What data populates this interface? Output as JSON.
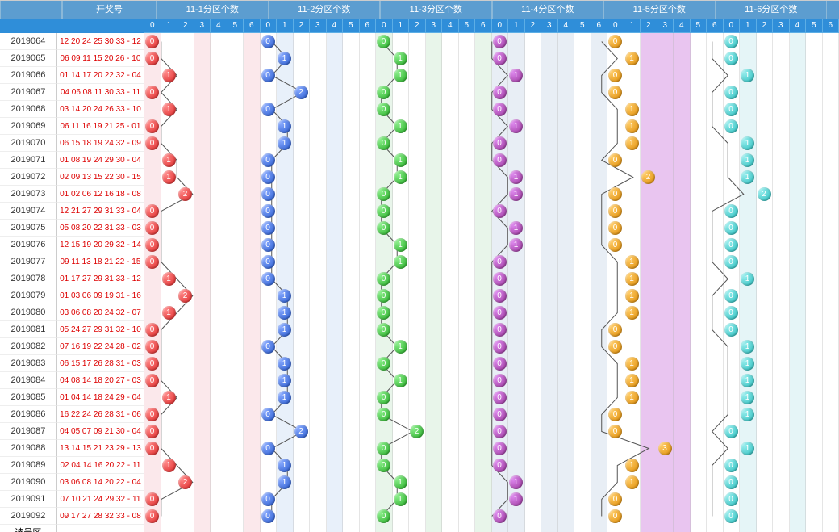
{
  "headers": {
    "h1": "开奖号",
    "h2": "11-1分区个数",
    "h3": "11-2分区个数",
    "h4": "11-3分区个数",
    "h5": "11-4分区个数",
    "h6": "11-5分区个数",
    "h7": "11-6分区个数",
    "footer": "选号区"
  },
  "subcols": [
    "0",
    "1",
    "2",
    "3",
    "4",
    "5",
    "6"
  ],
  "zones": [
    {
      "bg": [
        "#fbe8eb",
        "#fff",
        "#fff",
        "#fbe8eb",
        "#fff",
        "#fff",
        "#fbe8eb"
      ],
      "ball": "#d22"
    },
    {
      "bg": [
        "#fff",
        "#e8f0fa",
        "#fff",
        "#fff",
        "#e8f0fa",
        "#fff",
        "#fff"
      ],
      "ball": "#2255cc"
    },
    {
      "bg": [
        "#e8f5ea",
        "#fff",
        "#fff",
        "#e8f5ea",
        "#fff",
        "#fff",
        "#e8f5ea"
      ],
      "ball": "#2a2"
    },
    {
      "bg": [
        "#e8eef5",
        "#e8eef5",
        "#fff",
        "#e8eef5",
        "#e8eef5",
        "#fff",
        "#e8eef5"
      ],
      "ball": "#939"
    },
    {
      "bg": [
        "#fff",
        "#fff",
        "#e9c5f0",
        "#e9c5f0",
        "#e9c5f0",
        "#fff",
        "#fff"
      ],
      "ball": "#d80"
    },
    {
      "bg": [
        "#fff",
        "#e5f5f7",
        "#fff",
        "#fff",
        "#e5f5f7",
        "#fff",
        "#fff"
      ],
      "ball": "#2bb"
    }
  ],
  "rows": [
    {
      "p": "2019064",
      "n": "12 20 24 25 30 33 - 12",
      "v": [
        0,
        0,
        0,
        0,
        0,
        0
      ]
    },
    {
      "p": "2019065",
      "n": "06 09 11 15 20 26 - 10",
      "v": [
        0,
        1,
        1,
        0,
        1,
        0
      ]
    },
    {
      "p": "2019066",
      "n": "01 14 17 20 22 32 - 04",
      "v": [
        1,
        0,
        1,
        1,
        0,
        1
      ]
    },
    {
      "p": "2019067",
      "n": "04 06 08 11 30 33 - 11",
      "v": [
        0,
        2,
        0,
        0,
        0,
        0
      ]
    },
    {
      "p": "2019068",
      "n": "03 14 20 24 26 33 - 10",
      "v": [
        1,
        0,
        0,
        0,
        1,
        0
      ]
    },
    {
      "p": "2019069",
      "n": "06 11 16 19 21 25 - 01",
      "v": [
        0,
        1,
        1,
        1,
        1,
        0
      ]
    },
    {
      "p": "2019070",
      "n": "06 15 18 19 24 32 - 09",
      "v": [
        0,
        1,
        0,
        0,
        1,
        1
      ]
    },
    {
      "p": "2019071",
      "n": "01 08 19 24 29 30 - 04",
      "v": [
        1,
        0,
        1,
        0,
        0,
        1
      ]
    },
    {
      "p": "2019072",
      "n": "02 09 13 15 22 30 - 15",
      "v": [
        1,
        0,
        1,
        1,
        2,
        1
      ]
    },
    {
      "p": "2019073",
      "n": "01 02 06 12 16 18 - 08",
      "v": [
        2,
        0,
        0,
        1,
        0,
        2
      ]
    },
    {
      "p": "2019074",
      "n": "12 21 27 29 31 33 - 04",
      "v": [
        0,
        0,
        0,
        0,
        0,
        0
      ]
    },
    {
      "p": "2019075",
      "n": "05 08 20 22 31 33 - 03",
      "v": [
        0,
        0,
        0,
        1,
        0,
        0
      ]
    },
    {
      "p": "2019076",
      "n": "12 15 19 20 29 32 - 14",
      "v": [
        0,
        0,
        1,
        1,
        0,
        0
      ]
    },
    {
      "p": "2019077",
      "n": "09 11 13 18 21 22 - 15",
      "v": [
        0,
        0,
        1,
        0,
        1,
        0
      ]
    },
    {
      "p": "2019078",
      "n": "01 17 27 29 31 33 - 12",
      "v": [
        1,
        0,
        0,
        0,
        1,
        1
      ]
    },
    {
      "p": "2019079",
      "n": "01 03 06 09 19 31 - 16",
      "v": [
        2,
        1,
        0,
        0,
        1,
        0
      ]
    },
    {
      "p": "2019080",
      "n": "03 06 08 20 24 32 - 07",
      "v": [
        1,
        1,
        0,
        0,
        1,
        0
      ]
    },
    {
      "p": "2019081",
      "n": "05 24 27 29 31 32 - 10",
      "v": [
        0,
        1,
        0,
        0,
        0,
        0
      ]
    },
    {
      "p": "2019082",
      "n": "07 16 19 22 24 28 - 02",
      "v": [
        0,
        0,
        1,
        0,
        0,
        1
      ]
    },
    {
      "p": "2019083",
      "n": "06 15 17 26 28 31 - 03",
      "v": [
        0,
        1,
        0,
        0,
        1,
        1
      ]
    },
    {
      "p": "2019084",
      "n": "04 08 14 18 20 27 - 03",
      "v": [
        0,
        1,
        1,
        0,
        1,
        1
      ]
    },
    {
      "p": "2019085",
      "n": "01 04 14 18 24 29 - 04",
      "v": [
        1,
        1,
        0,
        0,
        1,
        1
      ]
    },
    {
      "p": "2019086",
      "n": "16 22 24 26 28 31 - 06",
      "v": [
        0,
        0,
        0,
        0,
        0,
        1
      ]
    },
    {
      "p": "2019087",
      "n": "04 05 07 09 21 30 - 04",
      "v": [
        0,
        2,
        2,
        0,
        0,
        0
      ]
    },
    {
      "p": "2019088",
      "n": "13 14 15 21 23 29 - 13",
      "v": [
        0,
        0,
        0,
        0,
        3,
        1
      ]
    },
    {
      "p": "2019089",
      "n": "02 04 14 16 20 22 - 11",
      "v": [
        1,
        1,
        0,
        0,
        1,
        0
      ]
    },
    {
      "p": "2019090",
      "n": "03 06 08 14 20 22 - 04",
      "v": [
        2,
        1,
        1,
        1,
        1,
        0
      ]
    },
    {
      "p": "2019091",
      "n": "07 10 21 24 29 32 - 11",
      "v": [
        0,
        0,
        1,
        1,
        0,
        0
      ]
    },
    {
      "p": "2019092",
      "n": "09 17 27 28 32 33 - 08",
      "v": [
        0,
        0,
        0,
        0,
        0,
        0
      ]
    }
  ]
}
